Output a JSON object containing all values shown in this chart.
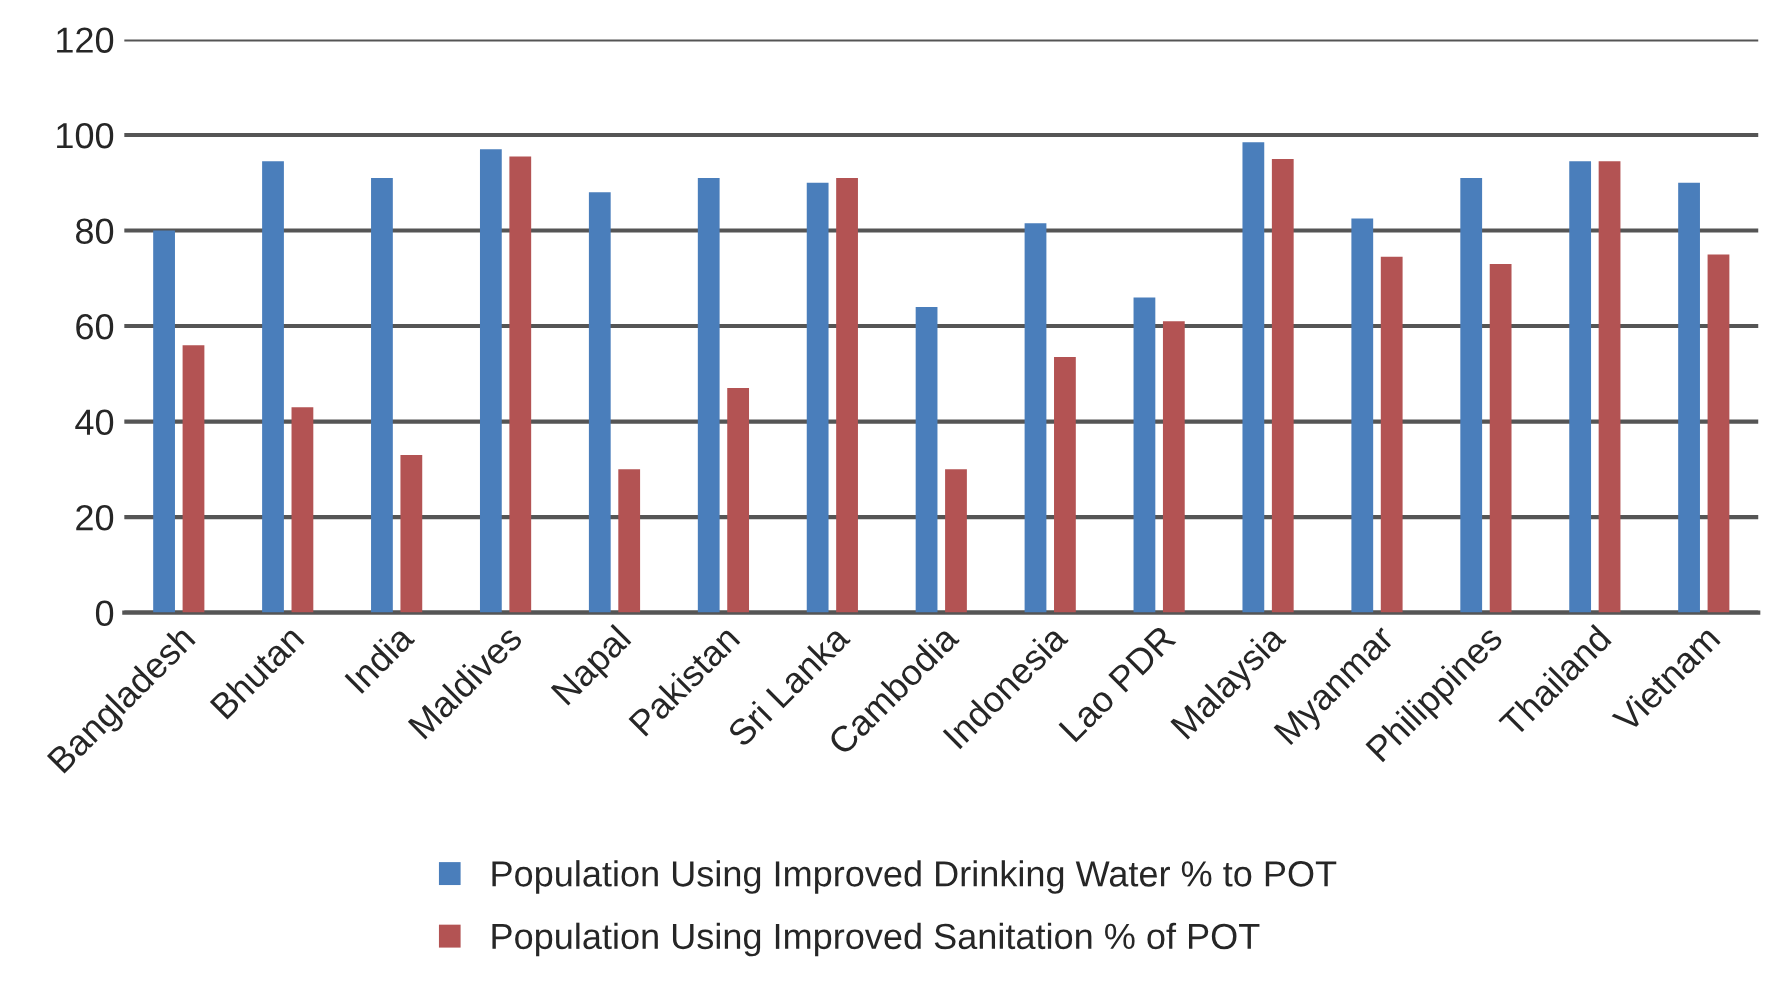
{
  "chart_data": {
    "type": "bar",
    "categories": [
      "Bangladesh",
      "Bhutan",
      "India",
      "Maldives",
      "Napal",
      "Pakistan",
      "Sri Lanka",
      "Cambodia",
      "Indonesia",
      "Lao PDR",
      "Malaysia",
      "Myanmar",
      "Philippines",
      "Thailand",
      "Vietnam"
    ],
    "series": [
      {
        "name": "Population Using Improved Drinking Water % to POT",
        "color": "#4a7ebb",
        "values": [
          80,
          94.5,
          91,
          97,
          88,
          91,
          90,
          64,
          81.5,
          66,
          98.5,
          82.5,
          91,
          94.5,
          90
        ]
      },
      {
        "name": "Population Using Improved Sanitation % of POT",
        "color": "#b35353",
        "values": [
          56,
          43,
          33,
          95.5,
          30,
          47,
          91,
          30,
          53.5,
          61,
          95,
          74.5,
          73,
          94.5,
          75
        ]
      }
    ],
    "ylim": [
      0,
      120
    ],
    "yticks": [
      0,
      20,
      40,
      60,
      80,
      100,
      120
    ],
    "grid": "y",
    "legend": "bottom"
  }
}
